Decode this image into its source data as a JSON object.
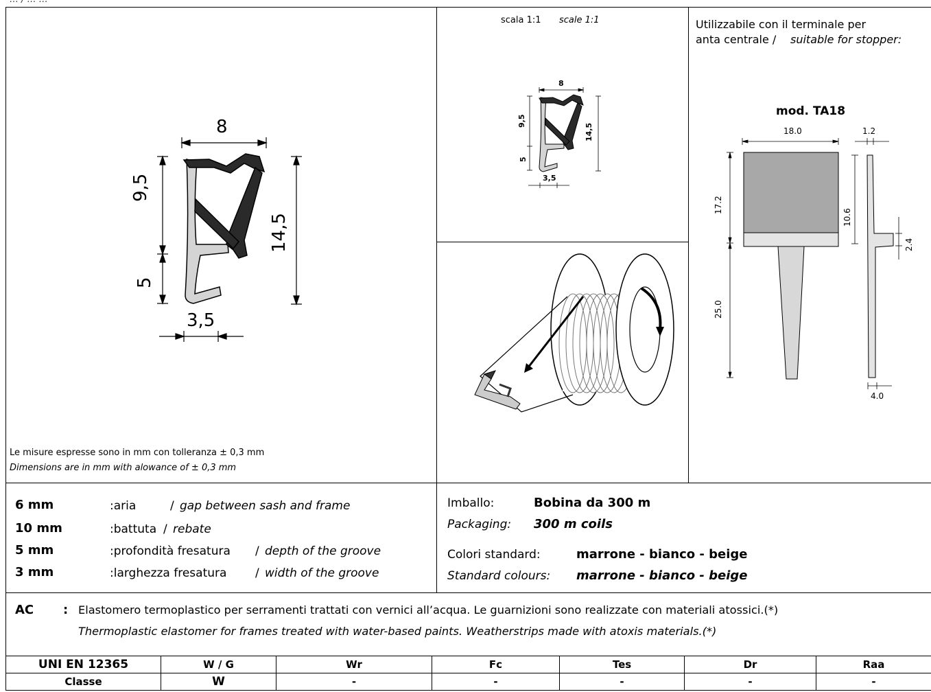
{
  "header_fragment": "… / … …",
  "main_drawing": {
    "dims": {
      "top": "8",
      "left_upper": "9,5",
      "left_lower": "5",
      "right": "14,5",
      "bottom": "3,5"
    },
    "tolerance_it": "Le misure espresse sono in mm con tolleranza ± 0,3 mm",
    "tolerance_en": "Dimensions are in mm with alowance of ± 0,3 mm"
  },
  "scale_view": {
    "label_it": "scala 1:1",
    "label_en": "scale 1:1",
    "dims": {
      "top": "8",
      "left_upper": "9,5",
      "left_lower": "5",
      "right": "14,5",
      "bottom": "3,5"
    }
  },
  "stopper": {
    "text_it_line1": "Utilizzabile con il terminale per",
    "text_it_line2": "anta centrale /",
    "text_en": "suitable for stopper:",
    "model": "mod. TA18",
    "dims": {
      "width": "18.0",
      "thickness": "1.2",
      "upper_height": "17.2",
      "lower_height": "25.0",
      "mid_height": "10.6",
      "step": "2.4",
      "tip": "4.0"
    }
  },
  "specs": [
    {
      "value": "6 mm",
      "it": ":aria",
      "sep": "/",
      "en": "gap between sash and frame"
    },
    {
      "value": "10 mm",
      "it": ":battuta",
      "sep": "/",
      "en": "rebate"
    },
    {
      "value": "5 mm",
      "it": ":profondità fresatura",
      "sep": "/",
      "en": "depth of the groove"
    },
    {
      "value": "3 mm",
      "it": ":larghezza fresatura",
      "sep": "/",
      "en": "width of the groove"
    }
  ],
  "packaging": {
    "label_it": "Imballo:",
    "value_it": "Bobina da 300 m",
    "label_en": "Packaging:",
    "value_en": "300 m coils"
  },
  "colours": {
    "label_it": "Colori standard:",
    "value_it": "marrone - bianco - beige",
    "label_en": "Standard colours:",
    "value_en": "marrone - bianco - beige"
  },
  "material": {
    "code": "AC",
    "colon": ":",
    "it": "Elastomero termoplastico per serramenti trattati con vernici all’acqua. Le guarnizioni sono realizzate con materiali atossici.(*)",
    "en": "Thermoplastic elastomer for frames treated with water-based paints. Weatherstrips made with atoxis materials.(*)"
  },
  "performance_table": {
    "headers": [
      "UNI EN 12365",
      "W / G",
      "Wr",
      "Fc",
      "Tes",
      "Dr",
      "Raa"
    ],
    "row": [
      "Classe",
      "W",
      "-",
      "-",
      "-",
      "-",
      "-"
    ]
  }
}
